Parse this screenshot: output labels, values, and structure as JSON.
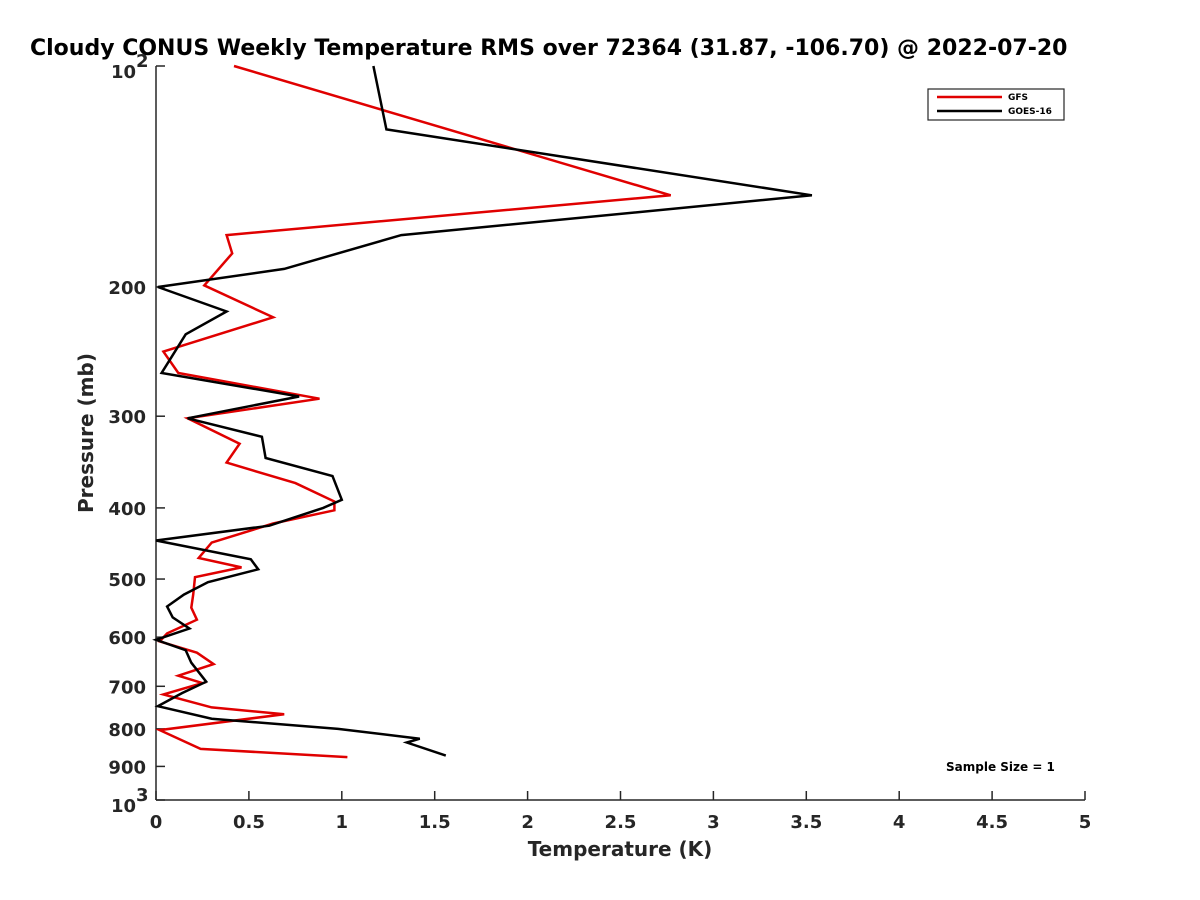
{
  "chart_data": {
    "type": "line",
    "title": "Cloudy CONUS Weekly Temperature RMS over 72364 (31.87, -106.70) @ 2022-07-20",
    "xlabel": "Temperature (K)",
    "ylabel": "Pressure (mb)",
    "xlim": [
      0,
      5
    ],
    "ylim": [
      100,
      1000
    ],
    "y_scale": "log",
    "y_reversed": true,
    "x_ticks": [
      "0",
      "0.5",
      "1",
      "1.5",
      "2",
      "2.5",
      "3",
      "3.5",
      "4",
      "4.5",
      "5"
    ],
    "x_tick_values": [
      0,
      0.5,
      1,
      1.5,
      2,
      2.5,
      3,
      3.5,
      4,
      4.5,
      5
    ],
    "y_ticks": [
      {
        "value": 100,
        "label": "10",
        "sup": "2"
      },
      {
        "value": 200,
        "label": "200",
        "sup": ""
      },
      {
        "value": 300,
        "label": "300",
        "sup": ""
      },
      {
        "value": 400,
        "label": "400",
        "sup": ""
      },
      {
        "value": 500,
        "label": "500",
        "sup": ""
      },
      {
        "value": 600,
        "label": "600",
        "sup": ""
      },
      {
        "value": 700,
        "label": "700",
        "sup": ""
      },
      {
        "value": 800,
        "label": "800",
        "sup": ""
      },
      {
        "value": 900,
        "label": "900",
        "sup": ""
      },
      {
        "value": 1000,
        "label": "10",
        "sup": "3"
      }
    ],
    "grid": false,
    "legend_position": "top-right",
    "series": [
      {
        "name": "GFS",
        "color": "#e00000",
        "points": [
          [
            0.42,
            100
          ],
          [
            2.77,
            150
          ],
          [
            0.38,
            170
          ],
          [
            0.41,
            180
          ],
          [
            0.26,
            199
          ],
          [
            0.63,
            220
          ],
          [
            0.04,
            245
          ],
          [
            0.12,
            262
          ],
          [
            0.88,
            284
          ],
          [
            0.17,
            302
          ],
          [
            0.45,
            327
          ],
          [
            0.38,
            347
          ],
          [
            0.75,
            370
          ],
          [
            0.96,
            392
          ],
          [
            0.96,
            403
          ],
          [
            0.63,
            420
          ],
          [
            0.3,
            446
          ],
          [
            0.23,
            468
          ],
          [
            0.46,
            482
          ],
          [
            0.21,
            497
          ],
          [
            0.2,
            525
          ],
          [
            0.19,
            547
          ],
          [
            0.22,
            568
          ],
          [
            0.06,
            593
          ],
          [
            0.02,
            608
          ],
          [
            0.22,
            630
          ],
          [
            0.31,
            653
          ],
          [
            0.12,
            677
          ],
          [
            0.25,
            693
          ],
          [
            0.04,
            718
          ],
          [
            0.3,
            748
          ],
          [
            0.69,
            764
          ],
          [
            0.02,
            803
          ],
          [
            0.24,
            852
          ],
          [
            1.03,
            874
          ]
        ]
      },
      {
        "name": "GOES-16",
        "color": "#000000",
        "points": [
          [
            1.17,
            100
          ],
          [
            1.24,
            122
          ],
          [
            3.53,
            150
          ],
          [
            1.32,
            170
          ],
          [
            0.69,
            189
          ],
          [
            0.01,
            200
          ],
          [
            0.38,
            216
          ],
          [
            0.16,
            232
          ],
          [
            0.03,
            262
          ],
          [
            0.77,
            282
          ],
          [
            0.17,
            302
          ],
          [
            0.57,
            320
          ],
          [
            0.59,
            342
          ],
          [
            0.95,
            362
          ],
          [
            1.0,
            390
          ],
          [
            0.9,
            400
          ],
          [
            0.61,
            423
          ],
          [
            0.0,
            443
          ],
          [
            0.51,
            470
          ],
          [
            0.55,
            485
          ],
          [
            0.28,
            505
          ],
          [
            0.15,
            525
          ],
          [
            0.06,
            545
          ],
          [
            0.09,
            564
          ],
          [
            0.18,
            584
          ],
          [
            0.0,
            605
          ],
          [
            0.16,
            625
          ],
          [
            0.19,
            650
          ],
          [
            0.27,
            690
          ],
          [
            0.14,
            715
          ],
          [
            0.01,
            745
          ],
          [
            0.3,
            775
          ],
          [
            0.98,
            800
          ],
          [
            1.42,
            825
          ],
          [
            1.35,
            835
          ],
          [
            1.56,
            870
          ]
        ]
      }
    ],
    "annotations": [
      "Sample Size = 1"
    ]
  }
}
